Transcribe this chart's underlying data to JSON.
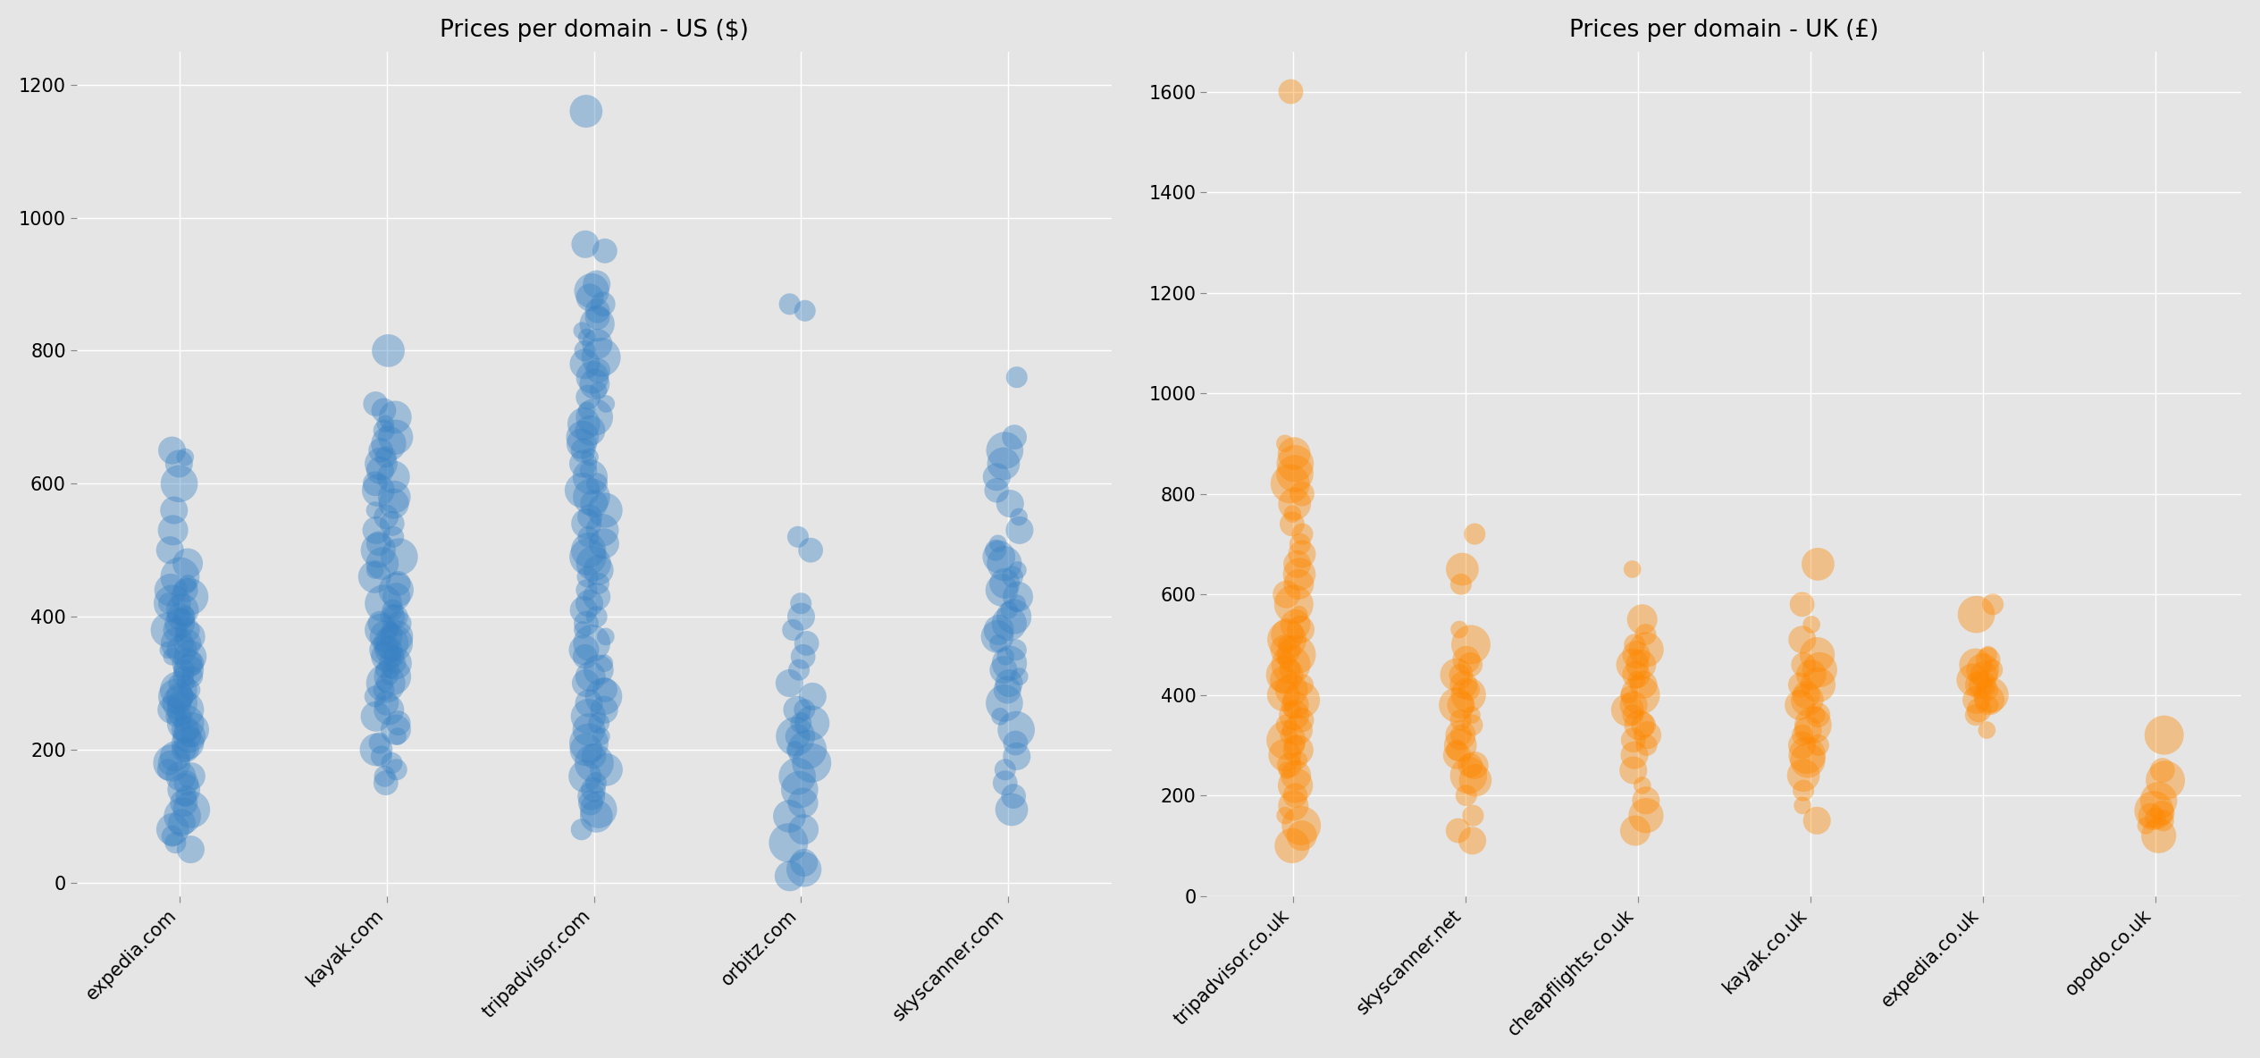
{
  "us_title": "Prices per domain - US ($)",
  "uk_title": "Prices per domain - UK (£)",
  "us_domains": [
    "expedia.com",
    "kayak.com",
    "tripadvisor.com",
    "orbitz.com",
    "skyscanner.com"
  ],
  "uk_domains": [
    "tripadvisor.co.uk",
    "skyscanner.net",
    "cheapflights.co.uk",
    "kayak.co.uk",
    "expedia.co.uk",
    "opodo.co.uk"
  ],
  "us_color": "#3a82c4",
  "uk_color": "#ff8800",
  "background_color": "#e5e5e5",
  "us_ylim": [
    -20,
    1250
  ],
  "uk_ylim": [
    0,
    1680
  ],
  "title_fontsize": 19,
  "tick_fontsize": 15,
  "us_data": {
    "expedia.com": [
      50,
      60,
      70,
      80,
      90,
      100,
      110,
      120,
      130,
      140,
      150,
      160,
      170,
      180,
      190,
      200,
      210,
      220,
      230,
      240,
      250,
      260,
      270,
      280,
      290,
      300,
      310,
      320,
      330,
      340,
      350,
      360,
      370,
      380,
      390,
      400,
      410,
      420,
      430,
      440,
      450,
      460,
      480,
      500,
      530,
      560,
      600,
      630,
      640,
      650,
      160,
      180,
      200,
      220,
      240,
      260,
      280,
      300,
      320,
      340,
      360,
      380,
      400,
      420,
      440,
      400,
      380,
      350,
      330,
      310,
      290,
      270,
      250,
      230
    ],
    "kayak.com": [
      150,
      160,
      170,
      180,
      190,
      200,
      210,
      220,
      230,
      240,
      250,
      260,
      270,
      280,
      290,
      300,
      310,
      320,
      330,
      340,
      350,
      360,
      370,
      380,
      390,
      400,
      410,
      420,
      430,
      440,
      450,
      460,
      470,
      480,
      490,
      500,
      510,
      520,
      530,
      540,
      550,
      560,
      570,
      580,
      590,
      600,
      610,
      620,
      630,
      640,
      650,
      660,
      670,
      680,
      690,
      700,
      710,
      720,
      800,
      300,
      310,
      320,
      330,
      340,
      350,
      360,
      370,
      380,
      390,
      400
    ],
    "tripadvisor.com": [
      80,
      100,
      110,
      120,
      130,
      140,
      150,
      160,
      170,
      180,
      190,
      200,
      210,
      220,
      230,
      240,
      250,
      260,
      270,
      280,
      290,
      300,
      310,
      320,
      330,
      340,
      350,
      360,
      370,
      380,
      390,
      400,
      410,
      420,
      430,
      440,
      450,
      460,
      470,
      480,
      490,
      500,
      510,
      520,
      530,
      540,
      550,
      560,
      570,
      580,
      590,
      600,
      610,
      620,
      630,
      640,
      650,
      660,
      670,
      680,
      690,
      700,
      710,
      720,
      730,
      740,
      750,
      760,
      770,
      780,
      790,
      800,
      810,
      820,
      830,
      840,
      850,
      860,
      870,
      880,
      890,
      900,
      950,
      960,
      1160
    ],
    "orbitz.com": [
      10,
      20,
      30,
      60,
      80,
      100,
      120,
      140,
      160,
      180,
      200,
      220,
      240,
      260,
      280,
      300,
      320,
      340,
      360,
      380,
      400,
      420,
      500,
      520,
      860,
      870,
      200,
      220,
      240,
      260
    ],
    "skyscanner.com": [
      110,
      130,
      150,
      170,
      190,
      210,
      230,
      250,
      270,
      290,
      310,
      330,
      350,
      370,
      390,
      410,
      430,
      450,
      470,
      490,
      510,
      530,
      550,
      570,
      590,
      610,
      630,
      650,
      670,
      760,
      300,
      320,
      340,
      360,
      380,
      400,
      420,
      440,
      460,
      480,
      500
    ]
  },
  "uk_data": {
    "tripadvisor.co.uk": [
      100,
      120,
      140,
      160,
      180,
      200,
      220,
      240,
      260,
      280,
      300,
      320,
      340,
      360,
      380,
      400,
      420,
      440,
      460,
      480,
      500,
      520,
      540,
      560,
      580,
      600,
      620,
      640,
      660,
      680,
      700,
      720,
      740,
      760,
      780,
      800,
      820,
      840,
      860,
      880,
      900,
      1600,
      250,
      270,
      290,
      310,
      330,
      350,
      370,
      390,
      410,
      430,
      450,
      470,
      490,
      510,
      530
    ],
    "skyscanner.net": [
      110,
      130,
      160,
      200,
      230,
      260,
      290,
      320,
      350,
      380,
      410,
      440,
      470,
      500,
      530,
      620,
      650,
      720,
      240,
      260,
      280,
      300,
      320,
      340,
      360,
      380,
      400,
      420,
      440,
      460
    ],
    "cheapflights.co.uk": [
      130,
      160,
      190,
      220,
      250,
      280,
      310,
      340,
      370,
      400,
      430,
      460,
      490,
      520,
      550,
      650,
      300,
      320,
      340,
      360,
      380,
      400,
      420,
      440,
      460,
      480,
      500
    ],
    "kayak.co.uk": [
      150,
      180,
      210,
      240,
      270,
      300,
      330,
      360,
      390,
      420,
      450,
      480,
      510,
      540,
      580,
      660,
      280,
      300,
      320,
      340,
      360,
      380,
      400,
      420,
      440,
      460
    ],
    "expedia.co.uk": [
      330,
      360,
      390,
      420,
      450,
      480,
      560,
      580,
      370,
      380,
      390,
      400,
      410,
      420,
      430,
      440,
      450,
      460,
      470
    ],
    "opodo.co.uk": [
      120,
      140,
      150,
      155,
      160,
      165,
      170,
      190,
      230,
      250,
      320
    ]
  }
}
